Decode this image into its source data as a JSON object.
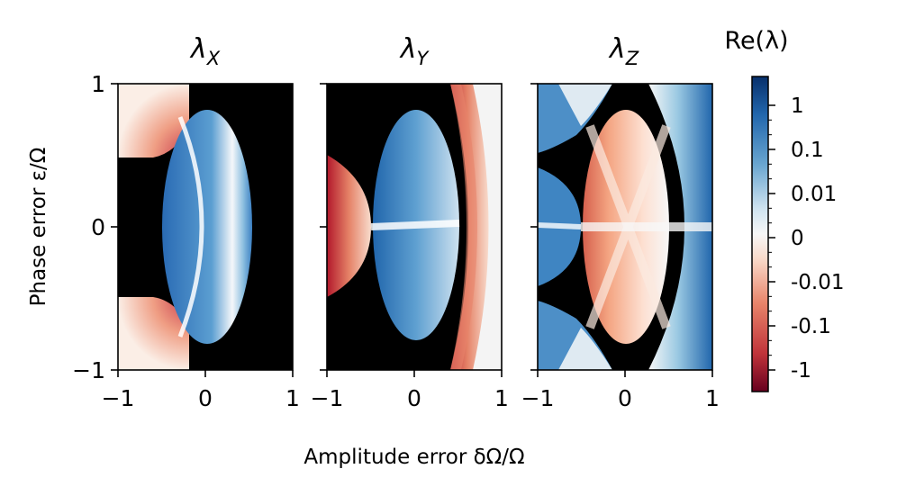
{
  "chart_data": {
    "type": "heatmap",
    "xlabel": "Amplitude error δΩ/Ω",
    "ylabel": "Phase error ε/Ω",
    "xlim": [
      -1,
      1
    ],
    "ylim": [
      -1,
      1
    ],
    "xticks": [
      -1,
      0,
      1
    ],
    "yticks": [
      -1,
      0,
      1
    ],
    "xtick_labels": [
      "−1",
      "0",
      "1"
    ],
    "ytick_labels": [
      "−1",
      "0",
      "1"
    ],
    "grid": false,
    "panels": [
      {
        "title_symbol": "λ",
        "title_subscript": "X",
        "description": "",
        "features": []
      },
      {
        "title_symbol": "λ",
        "title_subscript": "Y",
        "features": []
      },
      {
        "title_symbol": "λ",
        "title_subscript": "Z",
        "features": []
      }
    ],
    "colorbar": {
      "title": "Re(λ)",
      "scale": "symlog",
      "colormap": "RdBu",
      "tick_labels": [
        "1",
        "0.1",
        "0.01",
        "0",
        "-0.01",
        "-0.1",
        "-1"
      ],
      "tick_values": [
        1,
        0.1,
        0.01,
        0,
        -0.01,
        -0.1,
        -1
      ],
      "masked_color": "#000000"
    },
    "colors": {
      "positive_strong": "#08306b",
      "positive_mid": "#4a90c8",
      "neutral": "#f7f7f7",
      "negative_mid": "#e8846a",
      "negative_strong": "#67001f",
      "masked": "#000000"
    }
  }
}
